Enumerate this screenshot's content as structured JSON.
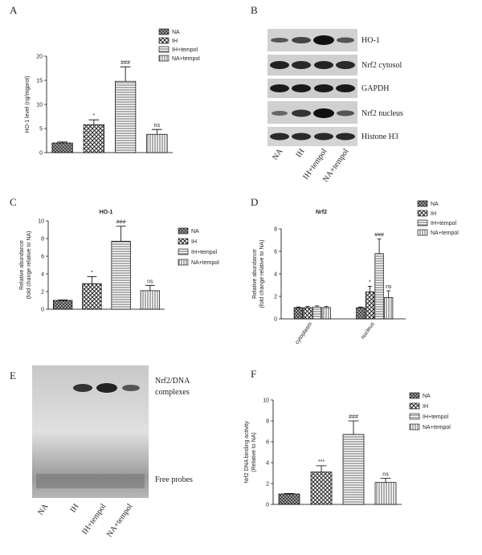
{
  "chart_data": [
    {
      "type": "bar",
      "panel": "A",
      "ylabel": [
        "HO-1 level (ng/mgprot)"
      ],
      "ylim": [
        0,
        20
      ],
      "yticks": [
        0,
        5,
        10,
        15,
        20
      ],
      "series": [
        {
          "name": "NA",
          "pattern": "checker",
          "values": [
            2
          ],
          "errors": [
            0.2
          ]
        },
        {
          "name": "IH",
          "pattern": "cross",
          "values": [
            5.8
          ],
          "errors": [
            1
          ],
          "annotations": [
            "*"
          ]
        },
        {
          "name": "IH+tempol",
          "pattern": "hlines",
          "values": [
            14.8
          ],
          "errors": [
            3
          ],
          "annotations": [
            "###"
          ]
        },
        {
          "name": "NA+tempol",
          "pattern": "vlines",
          "values": [
            3.8
          ],
          "errors": [
            1
          ],
          "annotations": [
            "ns"
          ]
        }
      ]
    },
    {
      "type": "bar",
      "panel": "C",
      "title": "HO-1",
      "ylabel": [
        "Relative abundance",
        "(fold change relative to NA)"
      ],
      "ylim": [
        0,
        10
      ],
      "yticks": [
        0,
        2,
        4,
        6,
        8,
        10
      ],
      "series": [
        {
          "name": "NA",
          "pattern": "checker",
          "values": [
            1
          ],
          "errors": [
            0.05
          ]
        },
        {
          "name": "IH",
          "pattern": "cross",
          "values": [
            2.9
          ],
          "errors": [
            0.8
          ],
          "annotations": [
            "*"
          ]
        },
        {
          "name": "IH+tempol",
          "pattern": "hlines",
          "values": [
            7.7
          ],
          "errors": [
            1.7
          ],
          "annotations": [
            "###"
          ]
        },
        {
          "name": "NA+tempol",
          "pattern": "vlines",
          "values": [
            2.1
          ],
          "errors": [
            0.6
          ],
          "annotations": [
            "ns"
          ]
        }
      ]
    },
    {
      "type": "bar",
      "panel": "D",
      "title": "Nrf2",
      "ylabel": [
        "Relative abundance",
        "(fold change relative to NA)"
      ],
      "ylim": [
        0,
        8
      ],
      "yticks": [
        0,
        2,
        4,
        6,
        8
      ],
      "categories": [
        "cytoplasm",
        "nucleus"
      ],
      "series": [
        {
          "name": "NA",
          "pattern": "checker",
          "values": [
            1,
            1
          ],
          "errors": [
            0.05,
            0.05
          ]
        },
        {
          "name": "IH",
          "pattern": "cross",
          "values": [
            1,
            2.4
          ],
          "errors": [
            0.1,
            0.5
          ],
          "annotations": [
            null,
            "*"
          ]
        },
        {
          "name": "IH+tempol",
          "pattern": "hlines",
          "values": [
            1.05,
            5.8
          ],
          "errors": [
            0.1,
            1.3
          ],
          "annotations": [
            null,
            "###"
          ]
        },
        {
          "name": "NA+tempol",
          "pattern": "vlines",
          "values": [
            1,
            1.9
          ],
          "errors": [
            0.1,
            0.6
          ],
          "annotations": [
            null,
            "ns"
          ]
        }
      ]
    },
    {
      "type": "bar",
      "panel": "F",
      "ylabel": [
        "Nrf2 DNA binding activity",
        "(Relative to NA)"
      ],
      "ylim": [
        0,
        10
      ],
      "yticks": [
        0,
        2,
        4,
        6,
        8,
        10
      ],
      "series": [
        {
          "name": "NA",
          "pattern": "checker",
          "values": [
            1
          ],
          "errors": [
            0.05
          ]
        },
        {
          "name": "IH",
          "pattern": "cross",
          "values": [
            3.1
          ],
          "errors": [
            0.6
          ],
          "annotations": [
            "***"
          ]
        },
        {
          "name": "IH+tempol",
          "pattern": "hlines",
          "values": [
            6.7
          ],
          "errors": [
            1.3
          ],
          "annotations": [
            "###"
          ]
        },
        {
          "name": "NA+tempol",
          "pattern": "vlines",
          "values": [
            2.1
          ],
          "errors": [
            0.4
          ],
          "annotations": [
            "ns"
          ]
        }
      ]
    }
  ],
  "blots": [
    {
      "panel": "B",
      "rows": [
        "HO-1",
        "Nrf2 cytosol",
        "GAPDH",
        "Nrf2  nucleus",
        "Histone H3"
      ],
      "lanes": [
        "NA",
        "IH",
        "IH+tempol",
        "NA+tempol"
      ]
    },
    {
      "panel": "E",
      "bands": [
        [
          "Nrf2/DNA",
          "complexes"
        ],
        [
          "Free probes"
        ]
      ],
      "lanes": [
        "NA",
        "IH",
        "IH+tempol",
        "NA+tempol"
      ]
    }
  ]
}
